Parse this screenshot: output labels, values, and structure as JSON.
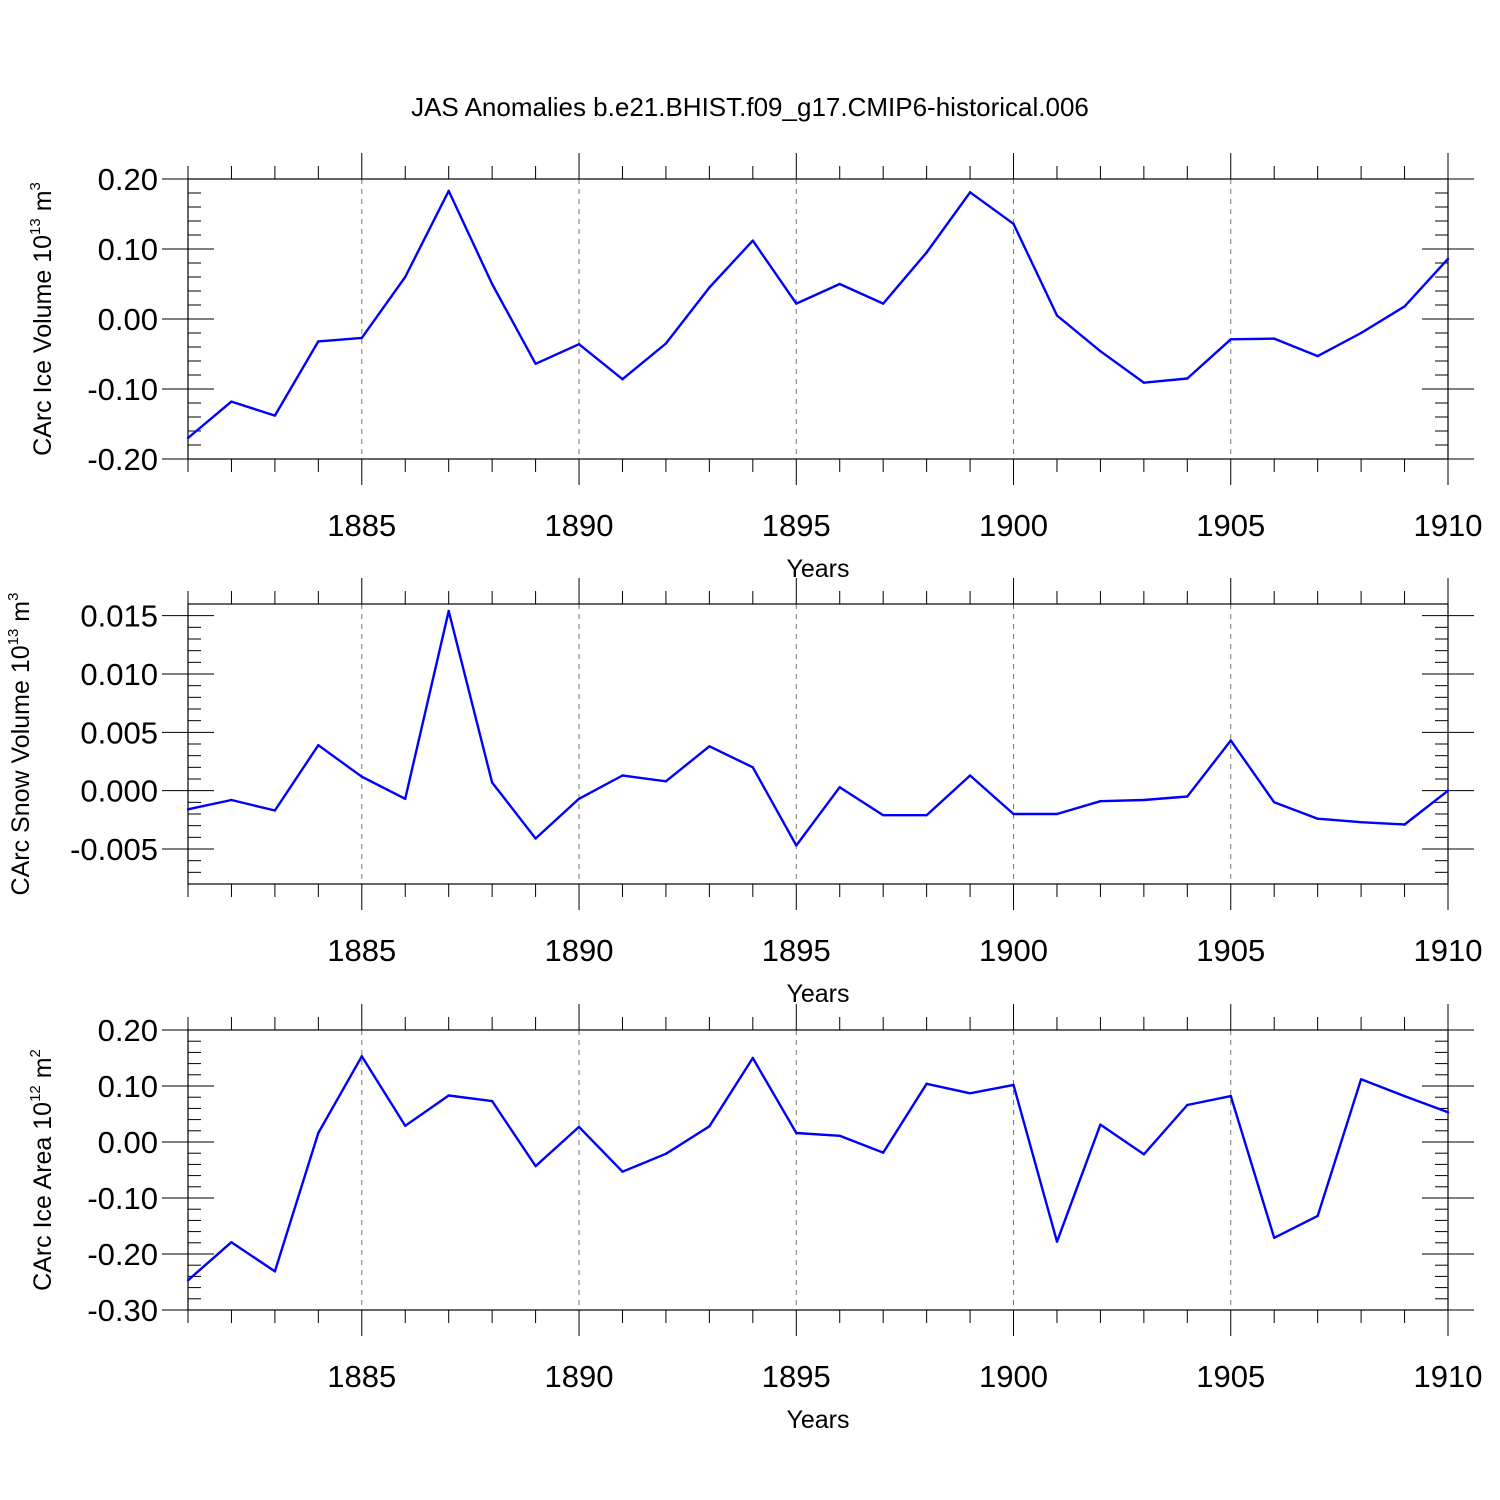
{
  "title": "JAS Anomalies b.e21.BHIST.f09_g17.CMIP6-historical.006",
  "colors": {
    "line": "#0000ff",
    "axis": "#000000",
    "grid": "#777777"
  },
  "chart_data": [
    {
      "type": "line",
      "ylabel_prefix": "CArc Ice Volume 10",
      "ylabel_exp": "13",
      "ylabel_unit": " m",
      "ylabel_unit_exp": "3",
      "xlabel": "Years",
      "xlim": [
        1881,
        1910
      ],
      "ylim": [
        -0.2,
        0.2
      ],
      "yticks": [
        -0.2,
        -0.1,
        0.0,
        0.1,
        0.2
      ],
      "ytick_labels": [
        "-0.20",
        "-0.10",
        "0.00",
        "0.10",
        "0.20"
      ],
      "yminor_step": 0.02,
      "xticks": [
        1885,
        1890,
        1895,
        1900,
        1905,
        1910
      ],
      "xtick_labels": [
        "1885",
        "1890",
        "1895",
        "1900",
        "1905",
        "1910"
      ],
      "grid": "vertical dashed at major x ticks",
      "x": [
        1881,
        1882,
        1883,
        1884,
        1885,
        1886,
        1887,
        1888,
        1889,
        1890,
        1891,
        1892,
        1893,
        1894,
        1895,
        1896,
        1897,
        1898,
        1899,
        1900,
        1901,
        1902,
        1903,
        1904,
        1905,
        1906,
        1907,
        1908,
        1909,
        1910
      ],
      "values": [
        -0.17,
        -0.118,
        -0.138,
        -0.032,
        -0.027,
        0.06,
        0.183,
        0.05,
        -0.064,
        -0.036,
        -0.086,
        -0.035,
        0.045,
        0.112,
        0.022,
        0.05,
        0.022,
        0.095,
        0.181,
        0.136,
        0.005,
        -0.046,
        -0.091,
        -0.085,
        -0.029,
        -0.028,
        -0.053,
        -0.02,
        0.018,
        0.086
      ]
    },
    {
      "type": "line",
      "ylabel_prefix": "CArc Snow Volume 10",
      "ylabel_exp": "13",
      "ylabel_unit": " m",
      "ylabel_unit_exp": "3",
      "xlabel": "Years",
      "xlim": [
        1881,
        1910
      ],
      "ylim": [
        -0.008,
        0.016
      ],
      "yticks": [
        -0.005,
        0.0,
        0.005,
        0.01,
        0.015
      ],
      "ytick_labels": [
        "-0.005",
        "0.000",
        "0.005",
        "0.010",
        "0.015"
      ],
      "yminor_step": 0.001,
      "xticks": [
        1885,
        1890,
        1895,
        1900,
        1905,
        1910
      ],
      "xtick_labels": [
        "1885",
        "1890",
        "1895",
        "1900",
        "1905",
        "1910"
      ],
      "grid": "vertical dashed at major x ticks",
      "x": [
        1881,
        1882,
        1883,
        1884,
        1885,
        1886,
        1887,
        1888,
        1889,
        1890,
        1891,
        1892,
        1893,
        1894,
        1895,
        1896,
        1897,
        1898,
        1899,
        1900,
        1901,
        1902,
        1903,
        1904,
        1905,
        1906,
        1907,
        1908,
        1909,
        1910
      ],
      "values": [
        -0.0016,
        -0.0008,
        -0.0017,
        0.0039,
        0.0012,
        -0.0007,
        0.0154,
        0.0007,
        -0.0041,
        -0.0007,
        0.0013,
        0.0008,
        0.0038,
        0.002,
        -0.0047,
        0.0003,
        -0.0021,
        -0.0021,
        0.0013,
        -0.002,
        -0.002,
        -0.0009,
        -0.0008,
        -0.0005,
        0.0043,
        -0.001,
        -0.0024,
        -0.0027,
        -0.0029,
        0.0
      ]
    },
    {
      "type": "line",
      "ylabel_prefix": "CArc Ice Area 10",
      "ylabel_exp": "12",
      "ylabel_unit": " m",
      "ylabel_unit_exp": "2",
      "xlabel": "Years",
      "xlim": [
        1881,
        1910
      ],
      "ylim": [
        -0.3,
        0.2
      ],
      "yticks": [
        -0.3,
        -0.2,
        -0.1,
        0.0,
        0.1,
        0.2
      ],
      "ytick_labels": [
        "-0.30",
        "-0.20",
        "-0.10",
        "0.00",
        "0.10",
        "0.20"
      ],
      "yminor_step": 0.02,
      "xticks": [
        1885,
        1890,
        1895,
        1900,
        1905,
        1910
      ],
      "xtick_labels": [
        "1885",
        "1890",
        "1895",
        "1900",
        "1905",
        "1910"
      ],
      "grid": "vertical dashed at major x ticks",
      "x": [
        1881,
        1882,
        1883,
        1884,
        1885,
        1886,
        1887,
        1888,
        1889,
        1890,
        1891,
        1892,
        1893,
        1894,
        1895,
        1896,
        1897,
        1898,
        1899,
        1900,
        1901,
        1902,
        1903,
        1904,
        1905,
        1906,
        1907,
        1908,
        1909,
        1910
      ],
      "values": [
        -0.247,
        -0.179,
        -0.231,
        0.016,
        0.153,
        0.029,
        0.083,
        0.073,
        -0.043,
        0.027,
        -0.053,
        -0.021,
        0.028,
        0.15,
        0.016,
        0.011,
        -0.019,
        0.104,
        0.087,
        0.102,
        -0.178,
        0.031,
        -0.022,
        0.066,
        0.082,
        -0.171,
        -0.132,
        0.112,
        0.082,
        0.053
      ]
    }
  ]
}
